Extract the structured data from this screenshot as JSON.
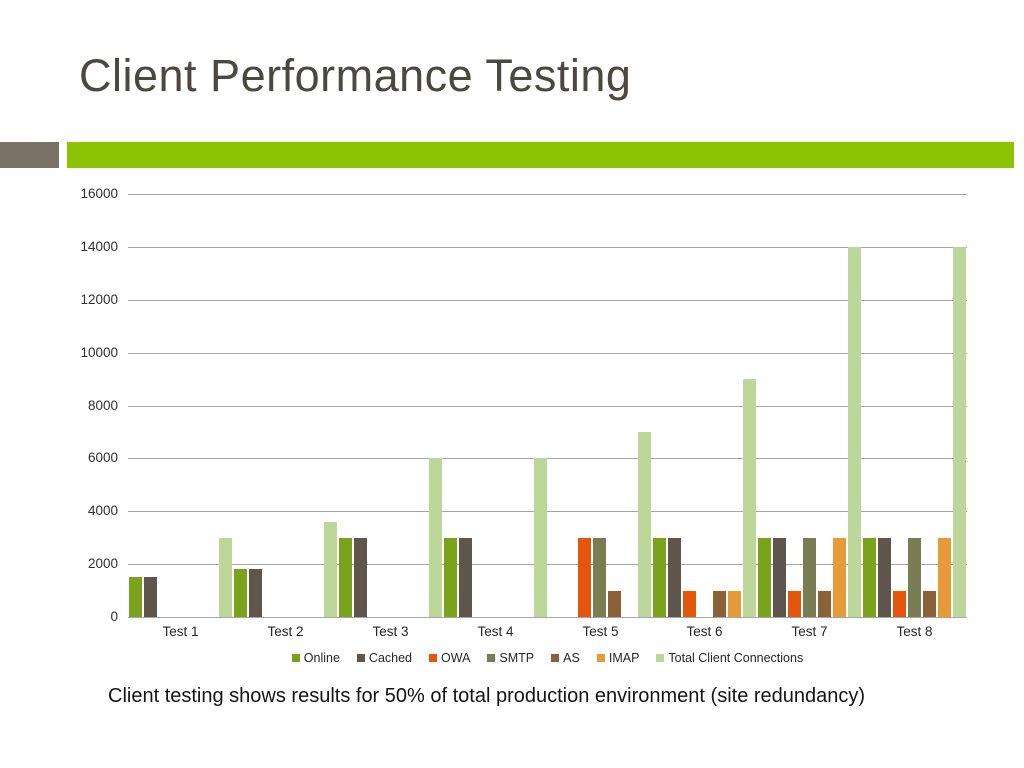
{
  "slide": {
    "title": "Client Performance Testing",
    "caption": "Client testing shows results for 50% of total production environment (site redundancy)",
    "accent_bar_color": "#8cc404",
    "accent_block_color": "#7a7266",
    "title_color": "#4b4840"
  },
  "chart_data": {
    "type": "bar",
    "title": "",
    "xlabel": "",
    "ylabel": "",
    "categories": [
      "Test 1",
      "Test 2",
      "Test 3",
      "Test 4",
      "Test 5",
      "Test 6",
      "Test 7",
      "Test 8"
    ],
    "series": [
      {
        "name": "Online",
        "color": "#7aa21b",
        "values": [
          1500,
          1800,
          3000,
          3000,
          0,
          3000,
          3000,
          3000
        ]
      },
      {
        "name": "Cached",
        "color": "#5e564d",
        "values": [
          1500,
          1800,
          3000,
          3000,
          0,
          3000,
          3000,
          3000
        ]
      },
      {
        "name": "OWA",
        "color": "#e4560b",
        "values": [
          0,
          0,
          0,
          0,
          3000,
          1000,
          1000,
          1000
        ]
      },
      {
        "name": "SMTP",
        "color": "#7a7d53",
        "values": [
          0,
          0,
          0,
          0,
          3000,
          0,
          3000,
          3000
        ]
      },
      {
        "name": "AS",
        "color": "#8a6138",
        "values": [
          0,
          0,
          0,
          0,
          1000,
          1000,
          1000,
          1000
        ]
      },
      {
        "name": "IMAP",
        "color": "#e69a38",
        "values": [
          0,
          0,
          0,
          0,
          0,
          1000,
          3000,
          3000
        ]
      },
      {
        "name": "Total Client Connections",
        "color": "#bdd69a",
        "values": [
          3000,
          3600,
          6000,
          6000,
          7000,
          9000,
          14000,
          14000
        ]
      }
    ],
    "ylim": [
      0,
      16000
    ],
    "ytick_step": 2000,
    "grid": true,
    "gridline_color": "#a6a6a6",
    "legend_position": "bottom"
  }
}
